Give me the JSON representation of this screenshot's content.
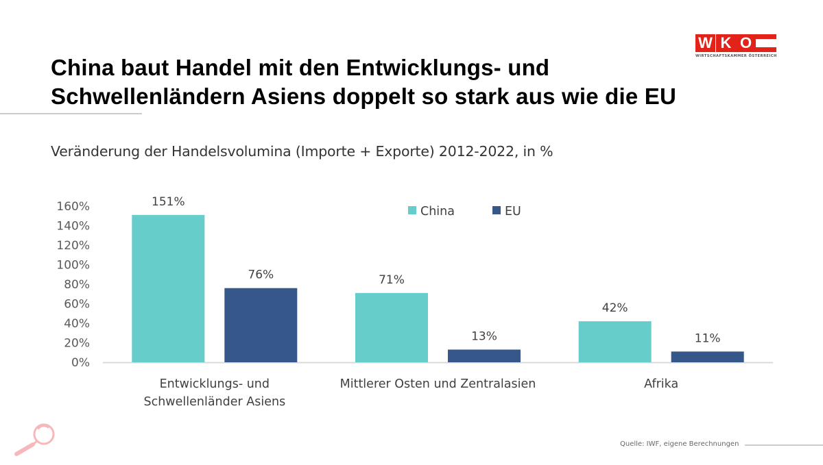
{
  "header": {
    "title_line1": "China baut Handel mit den Entwicklungs- und",
    "title_line2": "Schwellenländern Asiens doppelt so stark aus wie die EU"
  },
  "logo": {
    "letters": [
      "W",
      "K",
      "O"
    ],
    "tagline": "WIRTSCHAFTSKAMMER ÖSTERREICH",
    "brand_color": "#e2231a"
  },
  "footer": {
    "source": "Quelle:  IWF, eigene Berechnungen"
  },
  "icons": {
    "bottom_left": "magnifier-icon"
  },
  "chart_data": {
    "type": "bar",
    "title": "Veränderung der Handelsvolumina (Importe + Exporte) 2012-2022, in %",
    "xlabel": "",
    "ylabel": "",
    "ylim": [
      0,
      160
    ],
    "yticks": [
      0,
      20,
      40,
      60,
      80,
      100,
      120,
      140,
      160
    ],
    "ytick_labels": [
      "0%",
      "20%",
      "40%",
      "60%",
      "80%",
      "100%",
      "120%",
      "140%",
      "160%"
    ],
    "grid": false,
    "legend_position": "top-center",
    "categories": [
      [
        "Entwicklungs- und",
        "Schwellenländer Asiens"
      ],
      [
        "Mittlerer Osten und Zentralasien"
      ],
      [
        "Afrika"
      ]
    ],
    "series": [
      {
        "name": "China",
        "color": "#66cdca",
        "values": [
          151,
          71,
          42
        ],
        "labels": [
          "151%",
          "71%",
          "42%"
        ]
      },
      {
        "name": "EU",
        "color": "#36578a",
        "values": [
          76,
          13,
          11
        ],
        "labels": [
          "76%",
          "13%",
          "11%"
        ]
      }
    ]
  }
}
